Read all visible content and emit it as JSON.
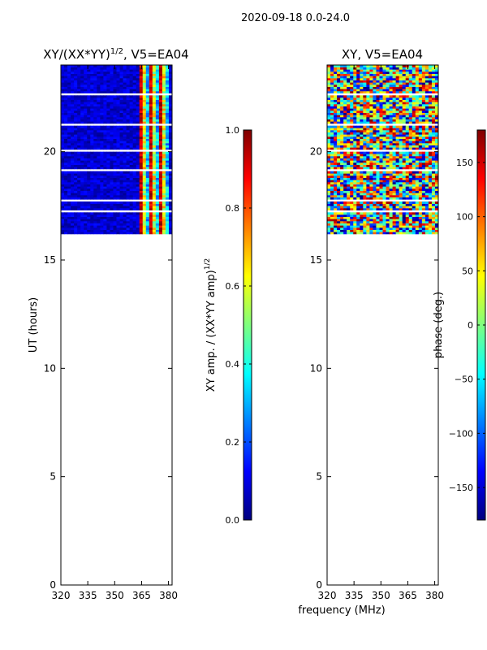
{
  "suptitle": "2020-09-18 0.0-24.0",
  "xlabel_shared": "frequency (MHz)",
  "colors": {
    "jet": [
      "#00007f",
      "#0000ff",
      "#007fff",
      "#00ffff",
      "#7fff7f",
      "#ffff00",
      "#ff7f00",
      "#ff0000",
      "#7f0000"
    ]
  },
  "chart_data": [
    {
      "type": "heatmap",
      "title": "XY/(XX*YY)^(1/2), V5=EA04",
      "title_main": "XY/(XX*YY)",
      "title_sup": "1/2",
      "title_rest": ", V5=EA04",
      "xlabel": "",
      "ylabel": "UT (hours)",
      "xlim": [
        320,
        382
      ],
      "ylim": [
        0,
        24
      ],
      "xticks": [
        "320",
        "335",
        "350",
        "365",
        "380"
      ],
      "xtick_values": [
        320,
        335,
        350,
        365,
        380
      ],
      "yticks": [
        "0",
        "5",
        "10",
        "15",
        "20"
      ],
      "ytick_values": [
        0,
        5,
        10,
        15,
        20
      ],
      "data_time_range": [
        16.2,
        24.0
      ],
      "gap_rows_ut": [
        22.6,
        21.2,
        20.0,
        19.1,
        17.7,
        17.2
      ],
      "bright_band_freq": [
        362,
        380
      ],
      "colorbar": {
        "label_main": "XY amp. / (XX*YY amp)",
        "label_sup": "1/2",
        "range": [
          0.0,
          1.0
        ],
        "ticks": [
          "0.0",
          "0.2",
          "0.4",
          "0.6",
          "0.8",
          "1.0"
        ],
        "tick_values": [
          0.0,
          0.2,
          0.4,
          0.6,
          0.8,
          1.0
        ]
      }
    },
    {
      "type": "heatmap",
      "title": "XY, V5=EA04",
      "xlabel": "frequency (MHz)",
      "ylabel": "",
      "xlim": [
        320,
        382
      ],
      "ylim": [
        0,
        24
      ],
      "xticks": [
        "320",
        "335",
        "350",
        "365",
        "380"
      ],
      "xtick_values": [
        320,
        335,
        350,
        365,
        380
      ],
      "yticks": [
        "0",
        "5",
        "10",
        "15",
        "20"
      ],
      "ytick_values": [
        0,
        5,
        10,
        15,
        20
      ],
      "data_time_range": [
        16.2,
        24.0
      ],
      "gap_rows_ut": [
        22.6,
        21.2,
        20.0,
        19.1,
        17.7,
        17.2
      ],
      "colorbar": {
        "label": "phase (deg.)",
        "range": [
          -180,
          180
        ],
        "ticks": [
          "−150",
          "−100",
          "−50",
          "0",
          "50",
          "100",
          "150"
        ],
        "tick_values": [
          -150,
          -100,
          -50,
          0,
          50,
          100,
          150
        ]
      }
    }
  ]
}
